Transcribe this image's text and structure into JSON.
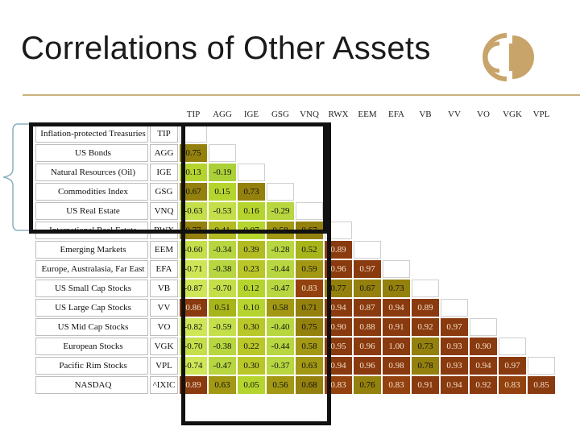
{
  "slide": {
    "title": "Correlations of Other Assets"
  },
  "logo": {
    "icon": "circle-logo-icon",
    "color": "#c8a46a"
  },
  "table": {
    "columns": [
      "TIP",
      "AGG",
      "IGE",
      "GSG",
      "VNQ",
      "RWX",
      "EEM",
      "EFA",
      "VB",
      "VV",
      "VO",
      "VGK",
      "VPL"
    ],
    "rows": [
      {
        "name": "Inflation-protected Treasuries",
        "ticker": "TIP",
        "values": []
      },
      {
        "name": "US Bonds",
        "ticker": "AGG",
        "values": [
          "0.75"
        ]
      },
      {
        "name": "Natural Resources (Oil)",
        "ticker": "IGE",
        "values": [
          "0.13",
          "-0.19"
        ]
      },
      {
        "name": "Commodities Index",
        "ticker": "GSG",
        "values": [
          "0.67",
          "0.15",
          "0.73"
        ]
      },
      {
        "name": "US Real Estate",
        "ticker": "VNQ",
        "values": [
          "-0.63",
          "-0.53",
          "0.16",
          "-0.29"
        ]
      },
      {
        "name": "International Real Estate",
        "ticker": "RWX",
        "values": [
          "0.77",
          "0.41",
          "0.07",
          "0.58",
          "0.67"
        ]
      },
      {
        "name": "Emerging Markets",
        "ticker": "EEM",
        "values": [
          "-0.60",
          "-0.34",
          "0.39",
          "-0.28",
          "0.52",
          "0.89"
        ]
      },
      {
        "name": "Europe, Australasia, Far East",
        "ticker": "EFA",
        "values": [
          "-0.71",
          "-0.38",
          "0.23",
          "-0.44",
          "0.59",
          "0.96",
          "0.97"
        ]
      },
      {
        "name": "US Small Cap Stocks",
        "ticker": "VB",
        "values": [
          "-0.87",
          "-0.70",
          "0.12",
          "-0.47",
          "0.83",
          "0.77",
          "0.67",
          "0.73"
        ]
      },
      {
        "name": "US Large Cap Stocks",
        "ticker": "VV",
        "values": [
          "0.86",
          "0.51",
          "0.10",
          "0.58",
          "0.71",
          "0.94",
          "0.87",
          "0.94",
          "0.89"
        ]
      },
      {
        "name": "US Mid Cap Stocks",
        "ticker": "VO",
        "values": [
          "-0.82",
          "-0.59",
          "0.30",
          "-0.40",
          "0.75",
          "0.90",
          "0.88",
          "0.91",
          "0.92",
          "0.97"
        ]
      },
      {
        "name": "European Stocks",
        "ticker": "VGK",
        "values": [
          "-0.70",
          "-0.38",
          "0.22",
          "-0.44",
          "0.58",
          "0.95",
          "0.96",
          "1.00",
          "0.73",
          "0.93",
          "0.90"
        ]
      },
      {
        "name": "Pacific Rim Stocks",
        "ticker": "VPL",
        "values": [
          "-0.74",
          "-0.47",
          "0.30",
          "-0.37",
          "0.63",
          "0.94",
          "0.96",
          "0.98",
          "0.78",
          "0.93",
          "0.94",
          "0.97"
        ]
      },
      {
        "name": "NASDAQ",
        "ticker": "^IXIC",
        "values": [
          "0.89",
          "0.63",
          "0.05",
          "0.56",
          "0.68",
          "0.83",
          "0.76",
          "0.83",
          "0.91",
          "0.94",
          "0.92",
          "0.83",
          "0.85"
        ]
      }
    ]
  },
  "colors": {
    "rule": "#c9b27c",
    "highlight": "#111111",
    "brace": "#8ab0c0"
  }
}
